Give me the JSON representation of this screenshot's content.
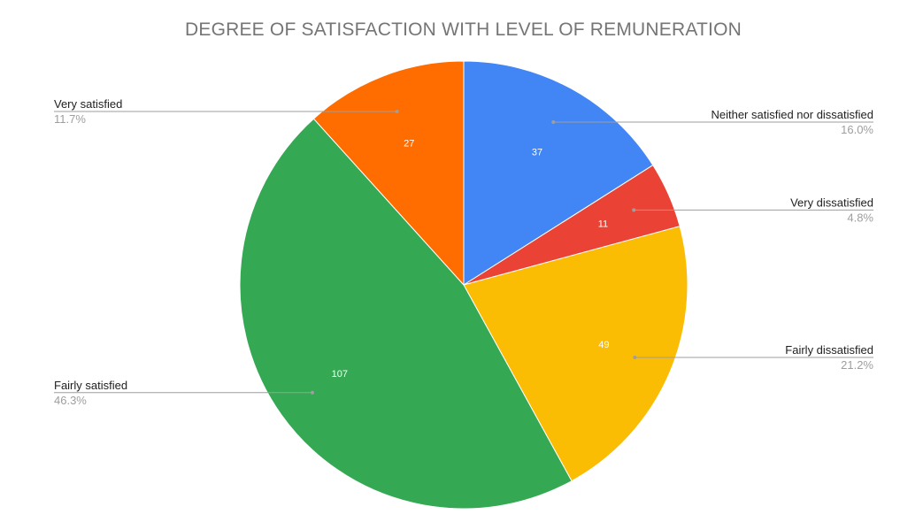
{
  "chart_data": {
    "type": "pie",
    "title": "DEGREE OF SATISFACTION WITH LEVEL OF REMUNERATION",
    "start_angle_deg": 0,
    "direction": "clockwise",
    "slices": [
      {
        "label": "Neither satisfied nor dissatisfied",
        "value": 37,
        "percent": "16.0%",
        "color": "#4285F4",
        "side": "right"
      },
      {
        "label": "Very dissatisfied",
        "value": 11,
        "percent": "4.8%",
        "color": "#EA4335",
        "side": "right"
      },
      {
        "label": "Fairly dissatisfied",
        "value": 49,
        "percent": "21.2%",
        "color": "#FBBC04",
        "side": "right"
      },
      {
        "label": "Fairly satisfied",
        "value": 107,
        "percent": "46.3%",
        "color": "#34A853",
        "side": "left"
      },
      {
        "label": "Very satisfied",
        "value": 27,
        "percent": "11.7%",
        "color": "#FF6D01",
        "side": "left"
      }
    ],
    "label_style": {
      "name_color": "#212121",
      "percent_color": "#9E9E9E",
      "leader_color": "#9E9E9E",
      "value_label_color": "#FFFFFF"
    }
  }
}
